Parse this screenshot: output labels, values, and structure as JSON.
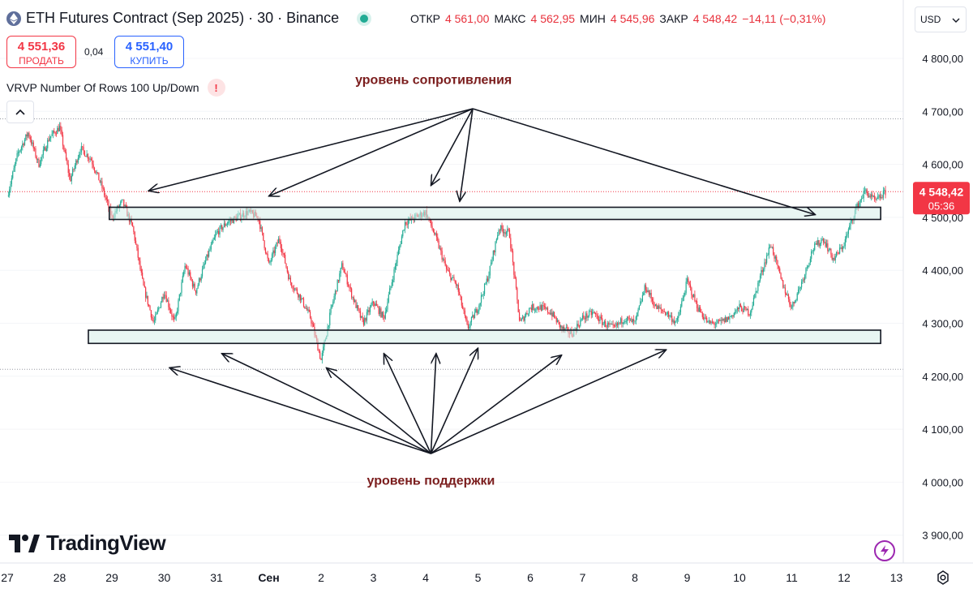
{
  "header": {
    "title": "ETH Futures Contract (Sep 2025) · 30 · Binance",
    "ohlc": [
      {
        "key": "ОТКР",
        "value": "4 561,00"
      },
      {
        "key": "МАКС",
        "value": "4 562,95"
      },
      {
        "key": "МИН",
        "value": "4 545,96"
      },
      {
        "key": "ЗАКР",
        "value": "4 548,42"
      }
    ],
    "change": "−14,11 (−0,31%)"
  },
  "trade": {
    "sell_price": "4 551,36",
    "sell_label": "ПРОДАТЬ",
    "spread": "0,04",
    "buy_price": "4 551,40",
    "buy_label": "КУПИТЬ"
  },
  "indicator": {
    "name": "VRVP Number Of Rows 100 Up/Down",
    "warning": "!"
  },
  "currency": "USD",
  "logo": "TradingView",
  "icons": {
    "eth": "eth-coin-icon",
    "collapse": "chevron-up-icon",
    "currency": "chevron-down-icon",
    "bolt": "lightning-icon",
    "settings": "gear-icon"
  },
  "colors": {
    "up": "#22ab94",
    "down": "#f23645",
    "zone_fill": "#d5efe9",
    "annotation_text": "#7b1d1d",
    "price_line": "#f23645"
  },
  "chart_data": {
    "type": "candlestick",
    "title": "ETH Futures Contract (Sep 2025) · 30 · Binance",
    "yticks": [
      3900,
      4000,
      4100,
      4200,
      4300,
      4400,
      4500,
      4600,
      4700,
      4800
    ],
    "ytick_labels": [
      "3 900,00",
      "4 000,00",
      "4 100,00",
      "4 200,00",
      "4 300,00",
      "4 400,00",
      "4 500,00",
      "4 600,00",
      "4 700,00",
      "4 800,00"
    ],
    "ylim": [
      3870,
      4815
    ],
    "xtick_labels": [
      "27",
      "28",
      "29",
      "30",
      "31",
      "Сен",
      "2",
      "3",
      "4",
      "5",
      "6",
      "7",
      "8",
      "9",
      "10",
      "11",
      "12",
      "13"
    ],
    "last_price": {
      "value": 4548.42,
      "label": "4 548,42",
      "countdown": "05:36"
    },
    "reference_lines": [
      4686,
      4213
    ],
    "series": [
      {
        "name": "ETH",
        "points": [
          [
            27.0,
            4540
          ],
          [
            27.2,
            4620
          ],
          [
            27.4,
            4660
          ],
          [
            27.6,
            4600
          ],
          [
            27.8,
            4650
          ],
          [
            28.0,
            4670
          ],
          [
            28.2,
            4570
          ],
          [
            28.4,
            4630
          ],
          [
            28.6,
            4610
          ],
          [
            28.8,
            4560
          ],
          [
            29.0,
            4500
          ],
          [
            29.2,
            4530
          ],
          [
            29.4,
            4480
          ],
          [
            29.6,
            4370
          ],
          [
            29.8,
            4300
          ],
          [
            30.0,
            4360
          ],
          [
            30.2,
            4300
          ],
          [
            30.4,
            4410
          ],
          [
            30.6,
            4360
          ],
          [
            30.8,
            4420
          ],
          [
            31.0,
            4470
          ],
          [
            31.2,
            4490
          ],
          [
            31.4,
            4500
          ],
          [
            31.6,
            4510
          ],
          [
            31.8,
            4500
          ],
          [
            32.0,
            4410
          ],
          [
            32.2,
            4460
          ],
          [
            32.4,
            4380
          ],
          [
            32.6,
            4350
          ],
          [
            32.8,
            4310
          ],
          [
            33.0,
            4230
          ],
          [
            33.2,
            4330
          ],
          [
            33.4,
            4410
          ],
          [
            33.6,
            4350
          ],
          [
            33.8,
            4300
          ],
          [
            34.0,
            4340
          ],
          [
            34.2,
            4310
          ],
          [
            34.4,
            4400
          ],
          [
            34.6,
            4490
          ],
          [
            34.8,
            4500
          ],
          [
            35.0,
            4510
          ],
          [
            35.2,
            4460
          ],
          [
            35.4,
            4400
          ],
          [
            35.6,
            4370
          ],
          [
            35.8,
            4290
          ],
          [
            36.0,
            4330
          ],
          [
            36.2,
            4390
          ],
          [
            36.4,
            4480
          ],
          [
            36.6,
            4470
          ],
          [
            36.8,
            4300
          ],
          [
            37.0,
            4330
          ],
          [
            37.2,
            4330
          ],
          [
            37.4,
            4320
          ],
          [
            37.6,
            4290
          ],
          [
            37.8,
            4280
          ],
          [
            38.0,
            4310
          ],
          [
            38.2,
            4320
          ],
          [
            38.4,
            4300
          ],
          [
            38.6,
            4290
          ],
          [
            38.8,
            4310
          ],
          [
            39.0,
            4300
          ],
          [
            39.2,
            4370
          ],
          [
            39.4,
            4330
          ],
          [
            39.6,
            4320
          ],
          [
            39.8,
            4300
          ],
          [
            40.0,
            4380
          ],
          [
            40.2,
            4330
          ],
          [
            40.4,
            4300
          ],
          [
            40.6,
            4300
          ],
          [
            40.8,
            4310
          ],
          [
            41.0,
            4330
          ],
          [
            41.2,
            4320
          ],
          [
            41.4,
            4390
          ],
          [
            41.6,
            4450
          ],
          [
            41.8,
            4380
          ],
          [
            42.0,
            4330
          ],
          [
            42.2,
            4380
          ],
          [
            42.4,
            4440
          ],
          [
            42.6,
            4460
          ],
          [
            42.8,
            4420
          ],
          [
            43.0,
            4450
          ],
          [
            43.2,
            4510
          ],
          [
            43.4,
            4550
          ],
          [
            43.6,
            4530
          ],
          [
            43.8,
            4548.42
          ]
        ]
      }
    ],
    "zones": [
      {
        "name": "resistance",
        "range": [
          4496,
          4519
        ],
        "x": [
          28.95,
          43.7
        ]
      },
      {
        "name": "support",
        "range": [
          4262,
          4287
        ],
        "x": [
          28.55,
          43.7
        ]
      }
    ],
    "annotations": [
      {
        "text": "уровень сопротивления",
        "at": [
          35.15,
          4752
        ],
        "arrows_from": [
          35.9,
          4705
        ],
        "arrows_to": [
          [
            29.7,
            4550
          ],
          [
            32.0,
            4540
          ],
          [
            35.1,
            4560
          ],
          [
            35.65,
            4530
          ],
          [
            42.45,
            4505
          ]
        ]
      },
      {
        "text": "уровень поддержки",
        "at": [
          35.1,
          3995
        ],
        "arrows_from": [
          35.1,
          4054
        ],
        "arrows_to": [
          [
            30.1,
            4216
          ],
          [
            31.1,
            4243
          ],
          [
            33.1,
            4216
          ],
          [
            34.2,
            4243
          ],
          [
            35.2,
            4243
          ],
          [
            36.0,
            4253
          ],
          [
            37.6,
            4240
          ],
          [
            39.6,
            4250
          ]
        ]
      }
    ]
  }
}
